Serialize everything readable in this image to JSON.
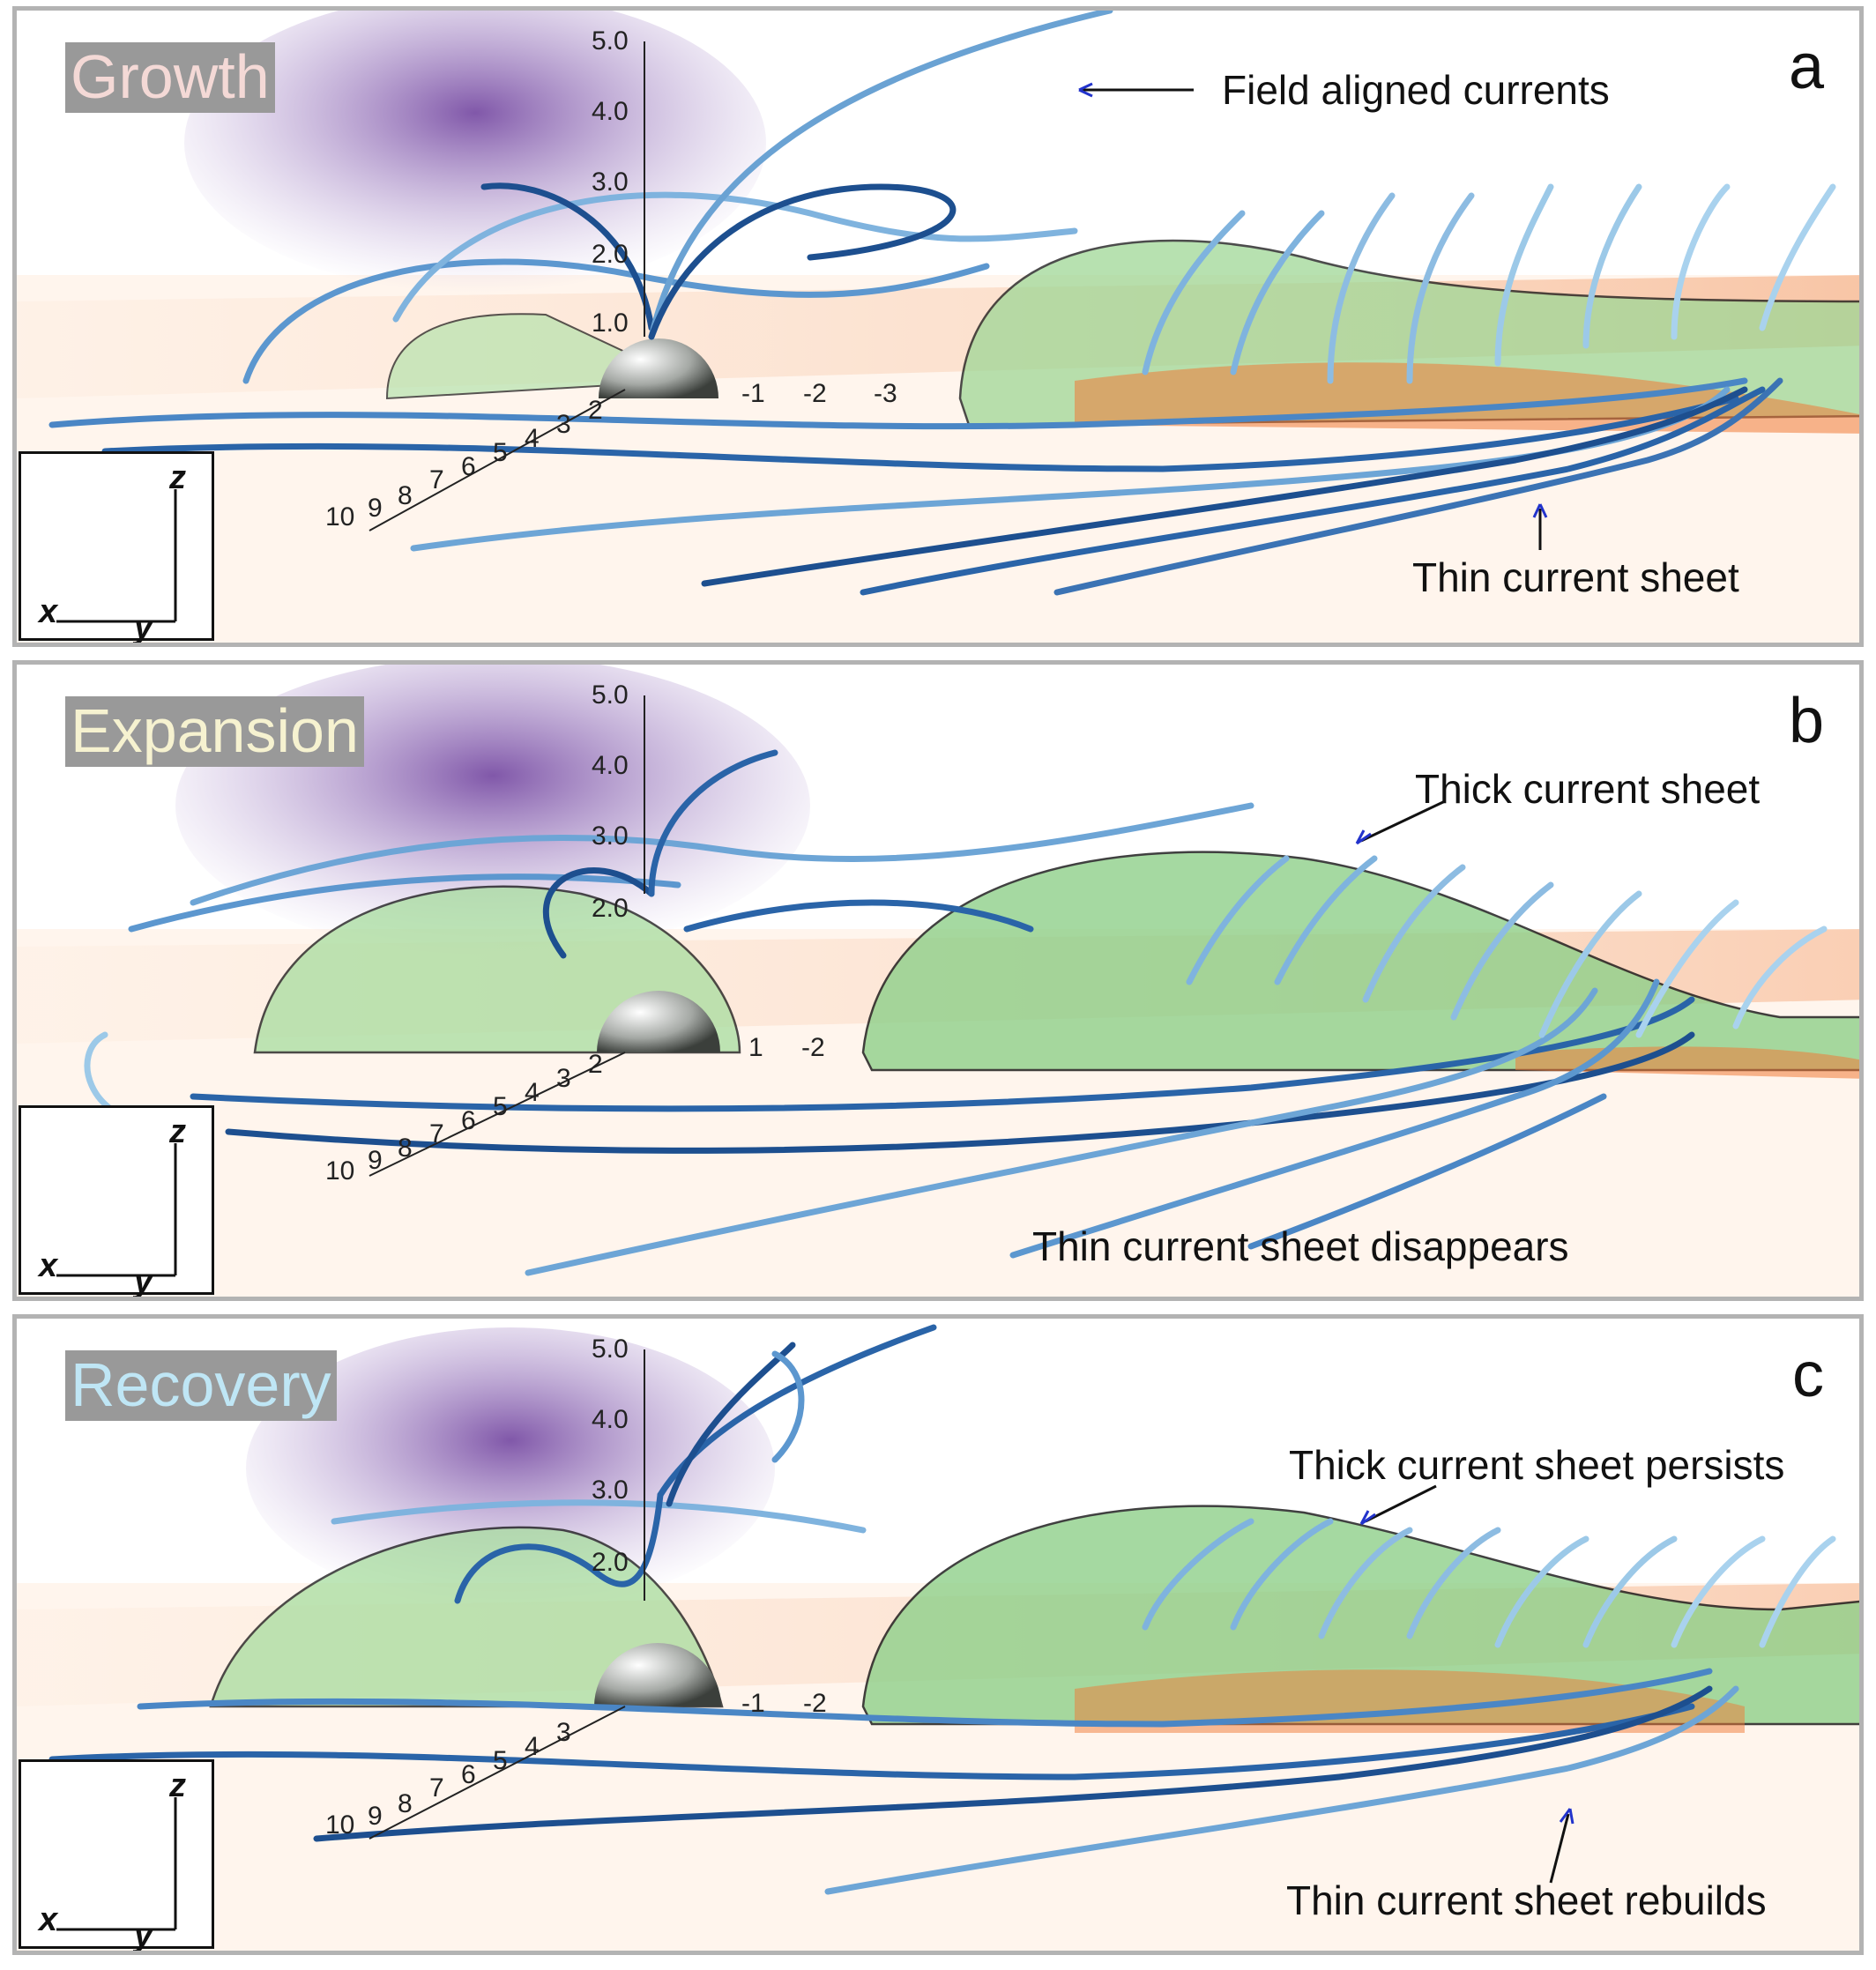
{
  "panels": [
    {
      "letter": "a",
      "phase": "Growth",
      "phase_color": "#f4d9d6",
      "annotations": [
        "Field aligned currents",
        "Thin current sheet"
      ],
      "z_ticks": [
        "5.0",
        "4.0",
        "3.0",
        "2.0",
        "1.0"
      ],
      "x_ticks": [
        "10",
        "9",
        "8",
        "7",
        "6",
        "5",
        "4",
        "3",
        "2"
      ],
      "y_ticks": [
        "-1",
        "-2",
        "-3"
      ],
      "axis_labels": {
        "x": "x",
        "y": "y",
        "z": "z"
      }
    },
    {
      "letter": "b",
      "phase": "Expansion",
      "phase_color": "#f6f2d0",
      "annotations": [
        "Thick current sheet",
        "Thin current sheet disappears"
      ],
      "z_ticks": [
        "5.0",
        "4.0",
        "3.0",
        "2.0"
      ],
      "x_ticks": [
        "10",
        "9",
        "8",
        "7",
        "6",
        "5",
        "4",
        "3",
        "2"
      ],
      "y_ticks": [
        "1",
        "-2"
      ],
      "axis_labels": {
        "x": "x",
        "y": "y",
        "z": "z"
      }
    },
    {
      "letter": "c",
      "phase": "Recovery",
      "phase_color": "#bfe6f5",
      "annotations": [
        "Thick current sheet persists",
        "Thin current sheet rebuilds"
      ],
      "z_ticks": [
        "5.0",
        "4.0",
        "3.0",
        "2.0"
      ],
      "x_ticks": [
        "10",
        "9",
        "8",
        "7",
        "6",
        "5",
        "4",
        "3"
      ],
      "y_ticks": [
        "-1",
        "-2"
      ],
      "axis_labels": {
        "x": "x",
        "y": "y",
        "z": "z"
      }
    }
  ],
  "colors": {
    "purple_haze": "#7b4fa8",
    "green_sheet": "#8fd08a",
    "orange_sheet": "#f0a26a",
    "field_line_dark": "#1d4f8f",
    "field_line_light": "#9cc9e8",
    "arrow_blue": "#2233cc"
  }
}
